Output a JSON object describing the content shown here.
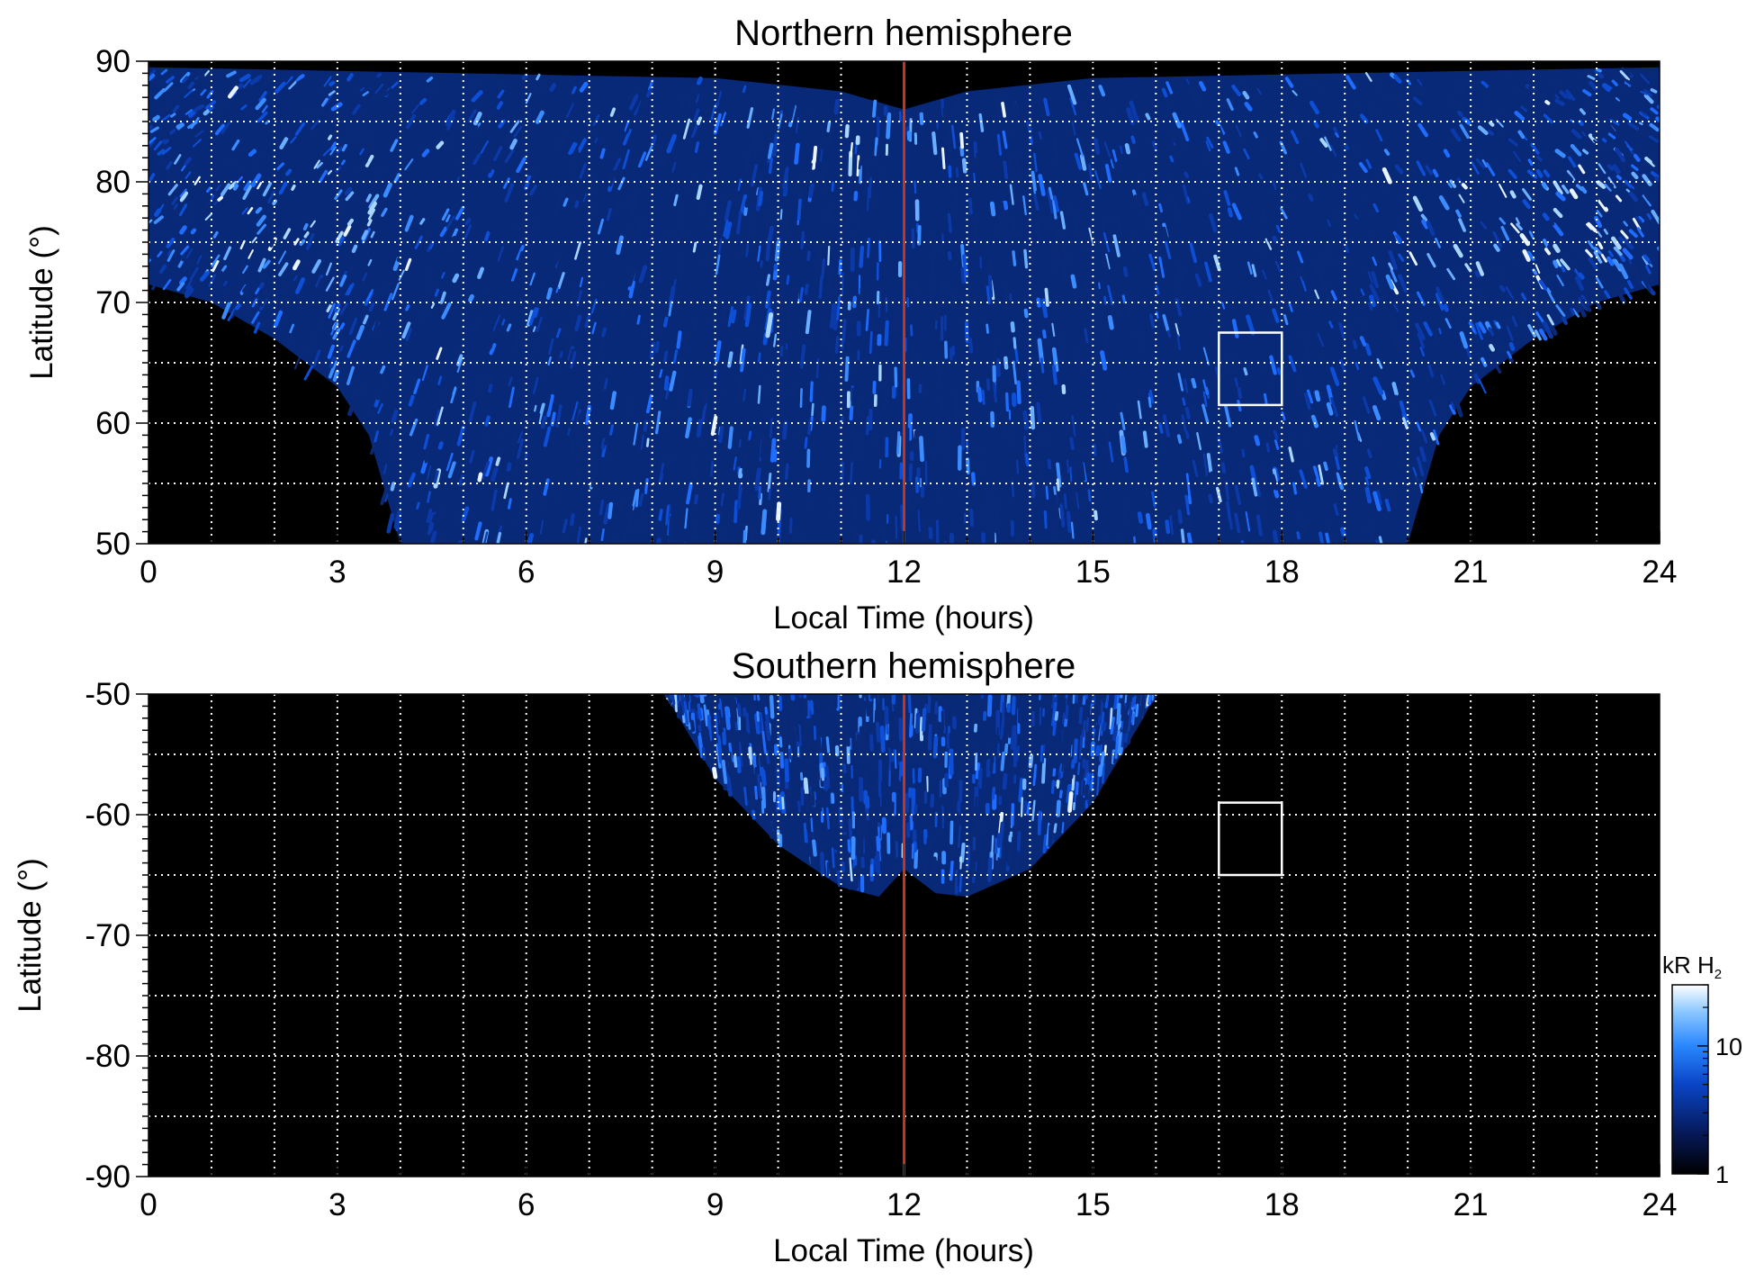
{
  "chart_data": [
    {
      "type": "heatmap",
      "title": "Northern hemisphere",
      "xlabel": "Local Time (hours)",
      "ylabel": "Latitude (°)",
      "xlim": [
        0,
        24
      ],
      "ylim": [
        50,
        90
      ],
      "xticks": [
        "0",
        "3",
        "6",
        "9",
        "12",
        "15",
        "18",
        "21",
        "24"
      ],
      "yticks": [
        "50",
        "60",
        "70",
        "80",
        "90"
      ],
      "grid": true,
      "reference_line": {
        "x": 12,
        "color": "#c8341a"
      },
      "box": {
        "x": [
          17,
          18
        ],
        "y": [
          61.5,
          67.5
        ]
      },
      "coverage_lower_edge": [
        [
          0,
          71.5
        ],
        [
          1,
          70
        ],
        [
          2,
          67
        ],
        [
          3,
          63
        ],
        [
          3.5,
          59
        ],
        [
          4,
          50
        ],
        [
          20,
          50
        ],
        [
          20.5,
          59
        ],
        [
          21,
          63
        ],
        [
          22,
          67
        ],
        [
          23,
          70
        ],
        [
          24,
          71.5
        ]
      ],
      "coverage_upper_edge": [
        [
          0,
          89.5
        ],
        [
          9,
          88.6
        ],
        [
          11,
          87.5
        ],
        [
          12,
          86
        ],
        [
          13,
          87.5
        ],
        [
          15,
          88.6
        ],
        [
          24,
          89.5
        ]
      ],
      "bright_bands": [
        {
          "x": [
            4.2,
            5.2
          ],
          "y": [
            60,
            70
          ]
        },
        {
          "x": [
            1,
            4
          ],
          "y": [
            73,
            80
          ]
        },
        {
          "x": [
            20,
            23.5
          ],
          "y": [
            73,
            80
          ]
        },
        {
          "x": [
            10.5,
            13.5
          ],
          "y": [
            82,
            86
          ]
        }
      ]
    },
    {
      "type": "heatmap",
      "title": "Southern hemisphere",
      "xlabel": "Local Time (hours)",
      "ylabel": "Latitude (°)",
      "xlim": [
        0,
        24
      ],
      "ylim": [
        -90,
        -50
      ],
      "xticks": [
        "0",
        "3",
        "6",
        "9",
        "12",
        "15",
        "18",
        "21",
        "24"
      ],
      "yticks": [
        "-90",
        "-80",
        "-70",
        "-60",
        "-50"
      ],
      "grid": true,
      "reference_line": {
        "x": 12,
        "color": "#c8341a"
      },
      "box": {
        "x": [
          17,
          18
        ],
        "y": [
          -65,
          -59
        ]
      },
      "coverage_lower_edge": [
        [
          8.2,
          -50
        ],
        [
          9,
          -57
        ],
        [
          10,
          -62.5
        ],
        [
          11,
          -66
        ],
        [
          11.6,
          -66.8
        ],
        [
          12,
          -64.5
        ],
        [
          12.5,
          -66.5
        ],
        [
          13,
          -66.8
        ],
        [
          14,
          -64.5
        ],
        [
          15,
          -59
        ],
        [
          15.8,
          -52
        ],
        [
          16,
          -50
        ]
      ],
      "coverage_upper_edge": [
        [
          8.2,
          -50
        ],
        [
          16,
          -50
        ]
      ]
    }
  ],
  "colorbar": {
    "title_main": "kR H",
    "title_sub": "2",
    "scale": "log",
    "range": [
      1,
      30
    ],
    "ticks": [
      "1",
      "10"
    ],
    "colors": [
      "#000000",
      "#061a5a",
      "#0a46c8",
      "#2a88ff",
      "#8cc8ff",
      "#ffffff"
    ]
  }
}
